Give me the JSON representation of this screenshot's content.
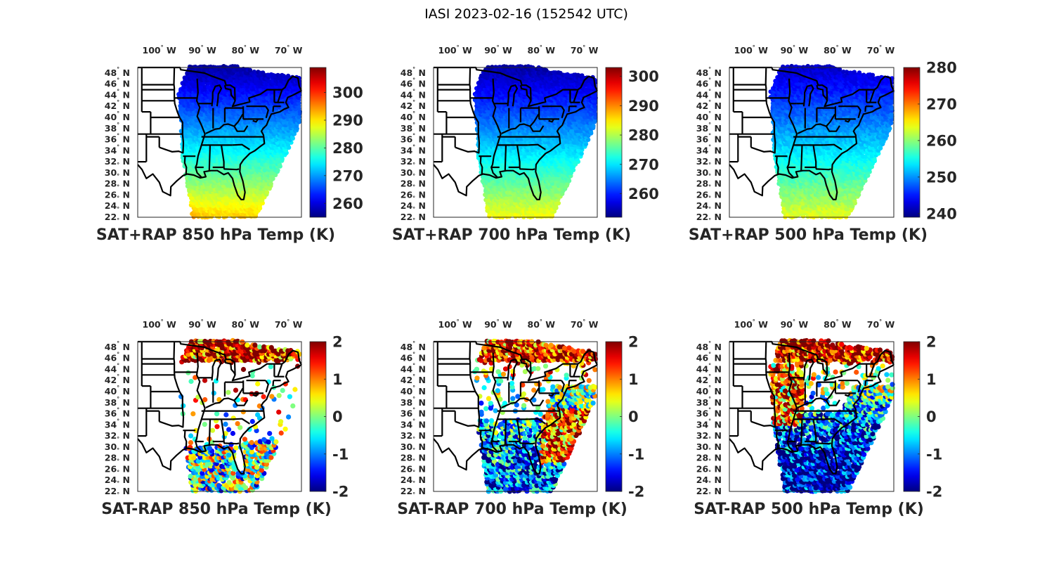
{
  "figure": {
    "title": "IASI 2023-02-16 (152542 UTC)"
  },
  "chart_data": [
    {
      "type": "heatmap",
      "title": "SAT+RAP 850 hPa Temp (K)",
      "xticklabels": [
        "100° W",
        "90° W",
        "80° W",
        "70° W"
      ],
      "xticks": [
        -100,
        -90,
        -80,
        -70
      ],
      "yticklabels": [
        "48° N",
        "46° N",
        "44° N",
        "42° N",
        "40° N",
        "38° N",
        "36° N",
        "34° N",
        "32° N",
        "30° N",
        "28° N",
        "26° N",
        "24° N",
        "22° N"
      ],
      "yticks": [
        48,
        46,
        44,
        42,
        40,
        38,
        36,
        34,
        32,
        30,
        28,
        26,
        24,
        22
      ],
      "lon_range": [
        -105,
        -67
      ],
      "lat_range": [
        22,
        49
      ],
      "colormap": "jet",
      "colorbar": {
        "ticks": [
          300,
          290,
          280,
          270,
          260
        ],
        "clim": [
          255,
          309
        ]
      },
      "field": {
        "kind": "absolute",
        "north_value": 257,
        "south_value": 292,
        "southwest_value": 300
      },
      "grid": false
    },
    {
      "type": "heatmap",
      "title": "SAT+RAP 700 hPa Temp (K)",
      "xticklabels": [
        "100° W",
        "90° W",
        "80° W",
        "70° W"
      ],
      "xticks": [
        -100,
        -90,
        -80,
        -70
      ],
      "yticklabels": [
        "48° N",
        "46° N",
        "44° N",
        "42° N",
        "40° N",
        "38° N",
        "36° N",
        "34° N",
        "32° N",
        "30° N",
        "28° N",
        "26° N",
        "24° N",
        "22° N"
      ],
      "yticks": [
        48,
        46,
        44,
        42,
        40,
        38,
        36,
        34,
        32,
        30,
        28,
        26,
        24,
        22
      ],
      "lon_range": [
        -105,
        -67
      ],
      "lat_range": [
        22,
        49
      ],
      "colormap": "jet",
      "colorbar": {
        "ticks": [
          300,
          290,
          280,
          270,
          260
        ],
        "clim": [
          252,
          303
        ]
      },
      "field": {
        "kind": "absolute",
        "north_value": 254,
        "south_value": 284,
        "southwest_value": 285
      },
      "grid": false
    },
    {
      "type": "heatmap",
      "title": "SAT+RAP 500 hPa Temp (K)",
      "xticklabels": [
        "100° W",
        "90° W",
        "80° W",
        "70° W"
      ],
      "xticks": [
        -100,
        -90,
        -80,
        -70
      ],
      "yticklabels": [
        "48° N",
        "46° N",
        "44° N",
        "42° N",
        "40° N",
        "38° N",
        "36° N",
        "34° N",
        "32° N",
        "30° N",
        "28° N",
        "26° N",
        "24° N",
        "22° N"
      ],
      "yticks": [
        48,
        46,
        44,
        42,
        40,
        38,
        36,
        34,
        32,
        30,
        28,
        26,
        24,
        22
      ],
      "lon_range": [
        -105,
        -67
      ],
      "lat_range": [
        22,
        49
      ],
      "colormap": "jet",
      "colorbar": {
        "ticks": [
          280,
          270,
          260,
          250,
          240
        ],
        "clim": [
          239,
          280
        ]
      },
      "field": {
        "kind": "absolute",
        "north_value": 242,
        "south_value": 264,
        "southwest_value": 265
      },
      "grid": false
    },
    {
      "type": "scatter",
      "title": "SAT-RAP 850 hPa Temp (K)",
      "xticklabels": [
        "100° W",
        "90° W",
        "80° W",
        "70° W"
      ],
      "xticks": [
        -100,
        -90,
        -80,
        -70
      ],
      "yticklabels": [
        "48° N",
        "46° N",
        "44° N",
        "42° N",
        "40° N",
        "38° N",
        "36° N",
        "34° N",
        "32° N",
        "30° N",
        "28° N",
        "26° N",
        "24° N",
        "22° N"
      ],
      "yticks": [
        48,
        46,
        44,
        42,
        40,
        38,
        36,
        34,
        32,
        30,
        28,
        26,
        24,
        22
      ],
      "lon_range": [
        -105,
        -67
      ],
      "lat_range": [
        22,
        49
      ],
      "colormap": "jet",
      "colorbar": {
        "ticks": [
          2,
          1,
          0,
          -1,
          -2
        ],
        "clim": [
          -2,
          2
        ]
      },
      "field": {
        "kind": "difference",
        "pattern": "sparse",
        "north_value": 2,
        "south_value": -0.3,
        "seed": 11
      },
      "grid": false
    },
    {
      "type": "scatter",
      "title": "SAT-RAP 700 hPa Temp (K)",
      "xticklabels": [
        "100° W",
        "90° W",
        "80° W",
        "70° W"
      ],
      "xticks": [
        -100,
        -90,
        -80,
        -70
      ],
      "yticklabels": [
        "48° N",
        "46° N",
        "44° N",
        "42° N",
        "40° N",
        "38° N",
        "36° N",
        "34° N",
        "32° N",
        "30° N",
        "28° N",
        "26° N",
        "24° N",
        "22° N"
      ],
      "yticks": [
        48,
        46,
        44,
        42,
        40,
        38,
        36,
        34,
        32,
        30,
        28,
        26,
        24,
        22
      ],
      "lon_range": [
        -105,
        -67
      ],
      "lat_range": [
        22,
        49
      ],
      "colormap": "jet",
      "colorbar": {
        "ticks": [
          2,
          1,
          0,
          -1,
          -2
        ],
        "clim": [
          -2,
          2
        ]
      },
      "field": {
        "kind": "difference",
        "pattern": "medium",
        "north_value": 1.8,
        "south_value": -1.2,
        "east_value": 1.7,
        "seed": 23
      },
      "grid": false
    },
    {
      "type": "scatter",
      "title": "SAT-RAP 500 hPa Temp (K)",
      "xticklabels": [
        "100° W",
        "90° W",
        "80° W",
        "70° W"
      ],
      "xticks": [
        -100,
        -90,
        -80,
        -70
      ],
      "yticklabels": [
        "48° N",
        "46° N",
        "44° N",
        "42° N",
        "40° N",
        "38° N",
        "36° N",
        "34° N",
        "32° N",
        "30° N",
        "28° N",
        "26° N",
        "24° N",
        "22° N"
      ],
      "yticks": [
        48,
        46,
        44,
        42,
        40,
        38,
        36,
        34,
        32,
        30,
        28,
        26,
        24,
        22
      ],
      "lon_range": [
        -105,
        -67
      ],
      "lat_range": [
        22,
        49
      ],
      "colormap": "jet",
      "colorbar": {
        "ticks": [
          2,
          1,
          0,
          -1,
          -2
        ],
        "clim": [
          -2,
          2
        ]
      },
      "field": {
        "kind": "difference",
        "pattern": "dense",
        "north_value": 2,
        "south_value": -1.8,
        "west_value": 1.6,
        "seed": 37
      },
      "grid": false
    }
  ]
}
